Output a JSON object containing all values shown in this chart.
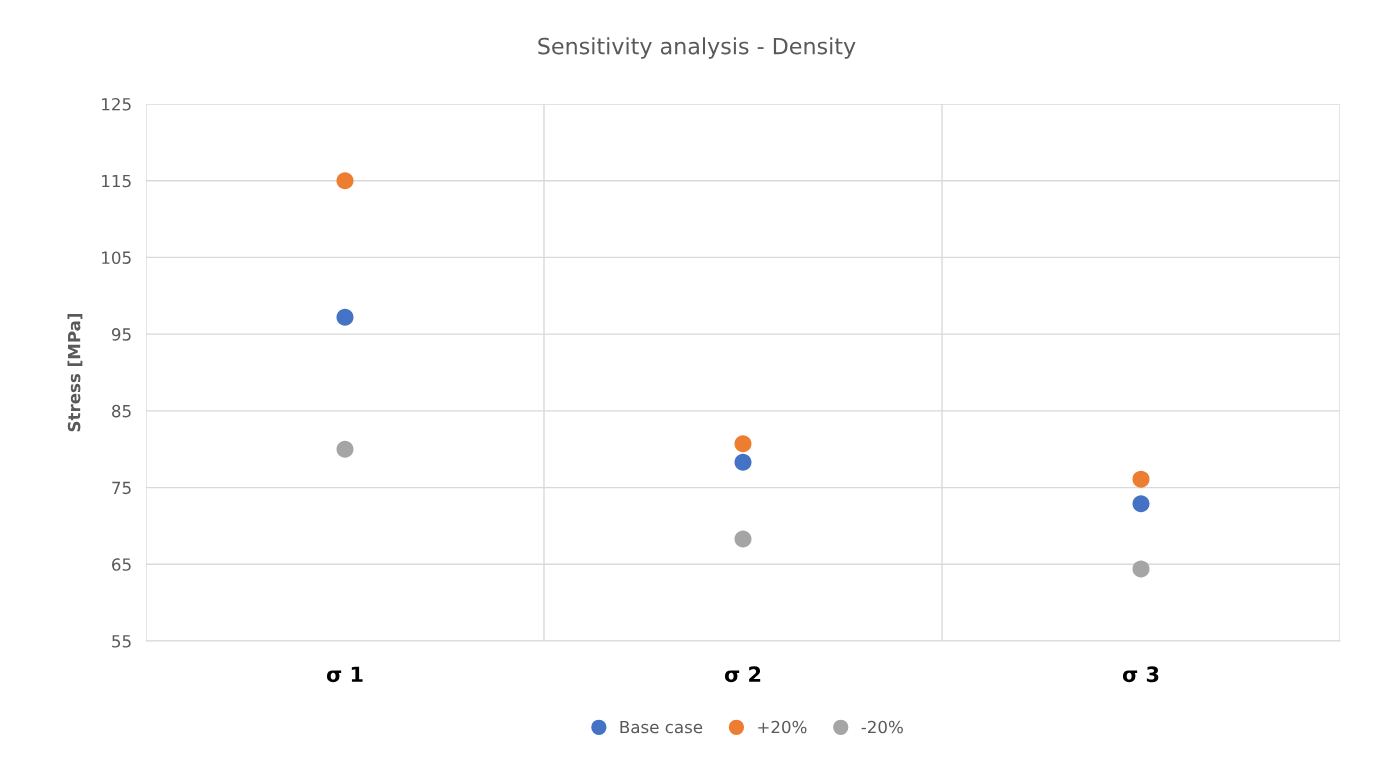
{
  "chart_data": {
    "type": "scatter",
    "title": "Sensitivity analysis - Density",
    "ylabel": "Stress [MPa]",
    "categories": [
      "σ 1",
      "σ 2",
      "σ 3"
    ],
    "series": [
      {
        "name": "Base case",
        "color": "#4472c4",
        "values": [
          97.2,
          78.3,
          72.9
        ]
      },
      {
        "name": "+20%",
        "color": "#ed7d31",
        "values": [
          115.0,
          80.7,
          76.1
        ]
      },
      {
        "name": "-20%",
        "color": "#a5a5a5",
        "values": [
          80.0,
          68.3,
          64.4
        ]
      }
    ],
    "ylim": [
      55,
      125
    ],
    "yticks": [
      55,
      65,
      75,
      85,
      95,
      105,
      115,
      125
    ],
    "grid": true,
    "legend": "bottom",
    "marker": "circle"
  }
}
